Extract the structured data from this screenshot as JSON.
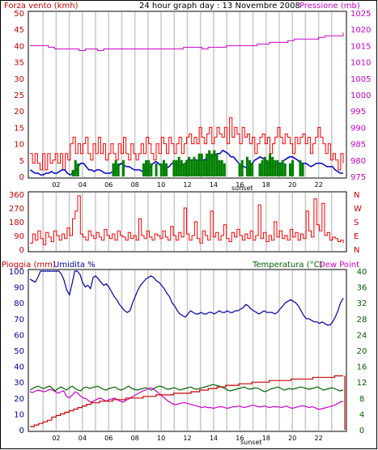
{
  "header": {
    "left_title": "Forza vento (kmh)",
    "center_title": "24 hour graph day : 13 Novembre 2008",
    "right_title": "Pressione (mb)"
  },
  "bottom_header": {
    "rain_label": "Pioggia (mm)",
    "humidity_label": "Umidita %",
    "temp_label": "Temperatura (°C)",
    "dew_label": "Dew Point"
  },
  "sunset_label": "sunset",
  "colors": {
    "wind": "#ff0000",
    "gust": "#ff0000",
    "wind_avg": "#0000cc",
    "wind_green": "#008000",
    "pressure": "#cc00cc",
    "direction": "#ff0000",
    "humidity": "#0000aa",
    "temperature": "#006400",
    "dew": "#cc00cc",
    "rain": "#cc0000",
    "grid_night": "#c8c8c8"
  },
  "chart_data": [
    {
      "type": "line",
      "id": "wind_pressure",
      "x_ticks": [
        "02",
        "04",
        "06",
        "08",
        "10",
        "12",
        "14",
        "16",
        "18",
        "20",
        "22"
      ],
      "left_axis": {
        "label": "Forza vento (kmh)",
        "ticks": [
          0,
          5,
          10,
          15,
          20,
          25,
          30,
          35,
          40,
          45,
          50
        ],
        "ylim": [
          0,
          50
        ]
      },
      "right_axis": {
        "label": "Pressione (mb)",
        "ticks": [
          975,
          980,
          985,
          990,
          995,
          1000,
          1005,
          1010,
          1015,
          1020,
          1025
        ],
        "ylim": [
          975,
          1025
        ]
      },
      "series": [
        {
          "key": "gust",
          "axis": "left",
          "style": "step",
          "values": [
            7,
            4,
            7,
            4,
            2,
            7,
            2,
            7,
            4,
            5,
            7,
            4,
            7,
            2,
            7,
            5,
            10,
            12,
            7,
            10,
            7,
            10,
            12,
            7,
            5,
            10,
            7,
            12,
            7,
            10,
            5,
            7,
            10,
            7,
            5,
            10,
            7,
            12,
            7,
            5,
            10,
            7,
            5,
            7,
            10,
            7,
            12,
            10,
            7,
            5,
            10,
            7,
            12,
            10,
            7,
            12,
            10,
            7,
            10,
            12,
            7,
            10,
            12,
            13,
            10,
            12,
            10,
            15,
            12,
            10,
            13,
            15,
            10,
            12,
            15,
            13,
            12,
            15,
            10,
            18,
            12,
            15,
            13,
            10,
            15,
            12,
            13,
            10,
            12,
            7,
            10,
            12,
            13,
            10,
            12,
            7,
            10,
            12,
            15,
            12,
            10,
            13,
            12,
            10,
            7,
            12,
            10,
            12,
            13,
            10,
            12,
            7,
            10,
            12,
            15,
            12,
            10,
            7,
            10,
            5,
            7,
            5,
            2,
            7,
            4
          ]
        },
        {
          "key": "wind_avg",
          "axis": "left",
          "style": "line",
          "values": [
            2,
            1.5,
            1,
            1,
            0.5,
            0.5,
            1,
            1,
            1.5,
            1,
            1,
            1.5,
            2,
            2,
            1,
            0.5,
            1,
            1.5,
            3,
            4,
            4,
            3,
            2,
            2,
            1.5,
            2,
            2,
            1.5,
            1,
            1,
            1,
            1.5,
            2,
            3,
            4,
            3.5,
            3,
            3,
            2.5,
            2,
            2,
            2,
            1.5,
            1.5,
            2,
            3,
            4,
            4.5,
            4,
            3,
            3,
            2.5,
            3,
            4,
            4,
            3,
            3,
            3.5,
            4,
            5,
            5,
            5,
            5,
            5,
            5,
            5,
            5.5,
            6,
            6,
            6.5,
            7,
            7,
            8,
            7.5,
            7,
            6,
            6,
            5,
            4,
            3,
            3,
            2.5,
            3,
            4,
            5,
            5.5,
            6,
            5.5,
            5,
            4,
            3,
            3,
            3.5,
            4,
            4,
            5,
            5.5,
            6,
            6,
            5.5,
            5,
            4,
            4,
            4,
            3.5,
            3,
            3.5,
            4,
            4,
            4,
            3.5,
            3,
            3,
            3,
            2,
            1.5,
            1,
            1
          ]
        },
        {
          "key": "wind_green",
          "axis": "left",
          "style": "bars",
          "values": [
            0,
            0,
            0,
            0,
            0,
            0,
            0,
            0,
            0,
            0,
            0,
            0,
            0,
            0,
            0,
            0,
            0,
            2,
            5,
            4,
            0,
            0,
            0,
            0,
            0,
            0,
            0,
            0,
            0,
            0,
            0,
            0,
            0,
            4,
            5,
            4,
            0,
            5,
            0,
            0,
            0,
            0,
            0,
            0,
            0,
            4,
            5,
            5,
            4,
            0,
            4,
            0,
            4,
            5,
            4,
            0,
            0,
            5,
            5,
            6,
            5,
            4,
            5,
            6,
            5,
            6,
            5,
            7,
            7,
            5,
            7,
            8,
            7,
            8,
            7,
            5,
            5,
            4,
            0,
            0,
            0,
            0,
            0,
            4,
            5,
            0,
            6,
            5,
            4,
            0,
            0,
            4,
            5,
            6,
            5,
            7,
            6,
            5,
            5,
            4,
            5,
            4,
            0,
            4,
            5,
            0,
            0,
            5,
            4,
            0,
            0,
            0,
            0,
            0,
            0,
            0,
            0,
            0,
            0,
            0,
            0,
            0,
            0,
            0,
            0
          ]
        },
        {
          "key": "pressure",
          "axis": "right",
          "style": "step",
          "values": [
            1015,
            1015,
            1015,
            1014.5,
            1014,
            1014,
            1014,
            1014,
            1013.5,
            1014,
            1014,
            1013.5,
            1014,
            1014,
            1014,
            1014,
            1014,
            1014,
            1014,
            1014,
            1014,
            1014,
            1014,
            1014,
            1014,
            1014.5,
            1014.5,
            1014.5,
            1014,
            1014.5,
            1014.5,
            1014.5,
            1015,
            1015,
            1015,
            1015,
            1015,
            1015.5,
            1015.5,
            1016,
            1016,
            1016,
            1016.5,
            1017,
            1017,
            1017,
            1017,
            1017.5,
            1018,
            1018,
            1018,
            1019
          ]
        }
      ]
    },
    {
      "type": "line",
      "id": "wind_direction",
      "y_ticks": [
        0,
        90,
        180,
        270,
        360
      ],
      "ylim": [
        0,
        360
      ],
      "right_labels": [
        "N",
        "W",
        "S",
        "E",
        "N"
      ],
      "values": [
        40,
        100,
        60,
        120,
        70,
        30,
        110,
        80,
        50,
        120,
        90,
        60,
        100,
        70,
        140,
        90,
        200,
        250,
        350,
        100,
        80,
        60,
        120,
        90,
        70,
        110,
        80,
        60,
        130,
        90,
        70,
        100,
        60,
        120,
        90,
        80,
        60,
        110,
        70,
        90,
        60,
        200,
        90,
        70,
        120,
        80,
        60,
        100,
        90,
        70,
        120,
        80,
        60,
        150,
        90,
        60,
        110,
        80,
        270,
        100,
        60,
        90,
        180,
        70,
        40,
        120,
        90,
        60,
        250,
        80,
        110,
        60,
        90,
        160,
        70,
        50,
        110,
        80,
        130,
        90,
        60,
        100,
        70,
        120,
        60,
        90,
        290,
        70,
        110,
        50,
        90,
        60,
        180,
        80,
        120,
        70,
        90,
        60,
        130,
        80,
        110,
        60,
        100,
        70,
        250,
        120,
        80,
        330,
        160,
        120,
        300,
        90,
        110,
        60,
        80,
        70,
        50,
        60,
        40
      ]
    },
    {
      "type": "line",
      "id": "hum_temp_rain",
      "left_axis": {
        "label": "Umidita % / Pioggia (mm)",
        "ticks": [
          0,
          10,
          20,
          30,
          40,
          50,
          60,
          70,
          80,
          90,
          100
        ],
        "ylim": [
          0,
          100
        ]
      },
      "right_axis": {
        "label": "Temperatura (°C)",
        "ticks": [
          0,
          4,
          8,
          12,
          16,
          20,
          24,
          28,
          32,
          36,
          40
        ],
        "ylim": [
          0,
          40
        ]
      },
      "series": [
        {
          "key": "humidity",
          "axis": "left",
          "values": [
            95,
            94,
            93,
            96,
            100,
            100,
            100,
            100,
            100,
            100,
            100,
            100,
            98,
            94,
            88,
            85,
            92,
            100,
            100,
            98,
            93,
            90,
            91,
            89,
            96,
            97,
            95,
            93,
            91,
            92,
            90,
            87,
            84,
            82,
            79,
            77,
            75,
            74,
            75,
            80,
            84,
            88,
            91,
            93,
            95,
            96,
            97,
            96,
            94,
            93,
            91,
            89,
            86,
            84,
            80,
            78,
            75,
            73,
            72,
            71,
            73,
            75,
            74,
            73,
            73,
            74,
            73,
            73,
            74,
            74,
            73,
            74,
            75,
            74,
            74,
            75,
            74,
            74,
            75,
            75,
            76,
            77,
            79,
            78,
            76,
            75,
            74,
            73,
            74,
            75,
            74,
            74,
            74,
            73,
            74,
            76,
            78,
            80,
            81,
            82,
            81,
            80,
            78,
            75,
            72,
            70,
            70,
            69,
            68,
            68,
            67,
            68,
            67,
            66,
            66,
            68,
            71,
            75,
            80,
            83
          ]
        },
        {
          "key": "temperature",
          "axis": "right",
          "values": [
            10,
            10.4,
            10.8,
            11,
            10.6,
            10.4,
            10.8,
            11,
            10.4,
            9.8,
            10.4,
            10.8,
            10.4,
            10,
            10.6,
            11,
            10.4,
            10,
            9.8,
            10.6,
            10.8,
            10.4,
            10.6,
            10.8,
            11,
            10.6,
            10.2,
            10,
            10.4,
            10.6,
            10.8,
            10.4,
            10,
            10.2,
            10.6,
            11,
            10.4,
            10.2,
            10,
            10.2,
            10.4,
            10.6,
            10.4,
            10,
            10.4,
            10.8,
            11,
            10.8,
            10.4,
            10.2,
            10.4,
            10.6,
            10.4,
            10,
            10.2,
            10.4,
            10.6,
            10.8,
            10.4,
            10.2,
            10.4,
            10.6,
            10.8,
            11,
            11.2,
            11.4,
            11.2,
            11,
            10.8,
            10.4,
            10,
            9.8,
            10,
            10.2,
            10.4,
            10.6,
            10.8,
            10.4,
            10.2,
            10.4,
            10.6,
            10.4,
            10,
            9.6,
            9.8,
            10.2,
            10.4,
            10.6,
            10.8,
            10.4,
            10,
            10.2,
            10.4,
            10.2,
            10.4,
            10.6,
            10.8,
            10.6,
            10.4,
            10.2,
            10.4,
            10.6,
            10.8,
            10.4,
            10,
            10.2,
            10.4,
            10.6,
            10.4,
            10,
            9.8,
            10
          ]
        },
        {
          "key": "dew",
          "axis": "right",
          "values": [
            9.6,
            9.4,
            9.8,
            10,
            9.8,
            9.6,
            9.8,
            10.2,
            10,
            9.6,
            9.2,
            9.6,
            9.8,
            8.4,
            8,
            8.8,
            9.6,
            9.2,
            8.4,
            8,
            7.8,
            7.2,
            7,
            7.4,
            7.8,
            8,
            7.6,
            7.2,
            7.6,
            7.8,
            8,
            7.6,
            7.2,
            7,
            7.4,
            7.8,
            8.2,
            8.6,
            9,
            9.4,
            9.8,
            10,
            10.4,
            10.6,
            10.2,
            9.6,
            9,
            8.4,
            7.8,
            7.2,
            6.8,
            6.4,
            6.4,
            6.6,
            6.8,
            6.8,
            6.6,
            6.4,
            6.2,
            6,
            5.8,
            5.6,
            5.8,
            5.6,
            5.6,
            5.4,
            5.6,
            5.8,
            5.8,
            5.6,
            5.4,
            5.6,
            5.8,
            5.8,
            6,
            5.8,
            5.6,
            5.8,
            6,
            6.2,
            6,
            5.8,
            5.8,
            6,
            5.8,
            5.6,
            5.8,
            5.8,
            5.8,
            5.6,
            5.8,
            6,
            5.6,
            5.4,
            5.6,
            5.8,
            6,
            6,
            5.8,
            5.6,
            5.8,
            5.6,
            5.2,
            5.2,
            5.4,
            5.6,
            5.8,
            6,
            6.2,
            6.6,
            7,
            7.2
          ]
        },
        {
          "key": "rain",
          "axis": "left",
          "style": "step",
          "values": [
            2,
            3,
            4,
            5,
            6,
            8,
            9,
            10,
            11,
            12,
            13,
            14,
            15,
            16,
            17,
            17,
            18,
            18,
            18,
            19,
            19,
            19,
            20,
            20,
            20,
            20,
            21,
            21,
            21,
            22,
            22,
            22,
            22,
            23,
            23,
            23,
            23,
            24,
            24,
            25,
            25,
            26,
            26,
            27,
            27,
            28,
            28,
            28,
            29,
            29,
            29,
            30,
            30,
            30,
            30,
            31,
            31,
            31,
            31,
            31,
            32,
            32,
            32,
            32,
            32,
            33,
            33,
            33,
            33,
            33,
            34,
            34,
            34
          ]
        }
      ]
    }
  ]
}
